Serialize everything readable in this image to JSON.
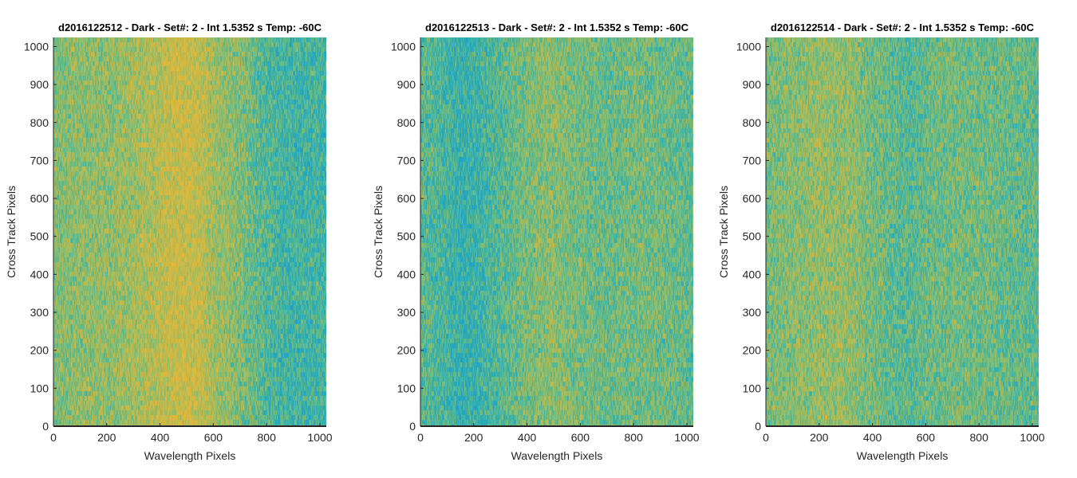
{
  "chart_data": [
    {
      "type": "heatmap",
      "title": "d2016122512 - Dark - Set#: 2 - Int 1.5352 s Temp: -60C",
      "xlabel": "Wavelength Pixels",
      "ylabel": "Cross Track Pixels",
      "xlim": [
        0,
        1024
      ],
      "ylim": [
        0,
        1024
      ],
      "xticks": [
        0,
        200,
        400,
        600,
        800,
        1000
      ],
      "yticks": [
        0,
        100,
        200,
        300,
        400,
        500,
        600,
        700,
        800,
        900,
        1000
      ],
      "grid": false,
      "colormap": [
        "#1f9fc8",
        "#2aaeb8",
        "#58b98c",
        "#8fbd6a",
        "#c3b84a",
        "#e2b83a"
      ],
      "column_profile": {
        "x": [
          0,
          100,
          200,
          300,
          400,
          450,
          500,
          550,
          600,
          700,
          800,
          900,
          1024
        ],
        "level": [
          0.55,
          0.6,
          0.6,
          0.68,
          0.78,
          0.85,
          0.88,
          0.82,
          0.68,
          0.55,
          0.35,
          0.28,
          0.3
        ]
      }
    },
    {
      "type": "heatmap",
      "title": "d2016122513 - Dark - Set#: 2 - Int 1.5352 s Temp: -60C",
      "xlabel": "Wavelength Pixels",
      "ylabel": "Cross Track Pixels",
      "xlim": [
        0,
        1024
      ],
      "ylim": [
        0,
        1024
      ],
      "xticks": [
        0,
        200,
        400,
        600,
        800,
        1000
      ],
      "yticks": [
        0,
        100,
        200,
        300,
        400,
        500,
        600,
        700,
        800,
        900,
        1000
      ],
      "grid": false,
      "colormap": [
        "#1f9fc8",
        "#2aaeb8",
        "#58b98c",
        "#8fbd6a",
        "#c3b84a",
        "#e2b83a"
      ],
      "column_profile": {
        "x": [
          0,
          100,
          150,
          200,
          300,
          400,
          500,
          600,
          700,
          800,
          900,
          1024
        ],
        "level": [
          0.42,
          0.3,
          0.22,
          0.25,
          0.38,
          0.52,
          0.58,
          0.5,
          0.45,
          0.5,
          0.48,
          0.42
        ]
      }
    },
    {
      "type": "heatmap",
      "title": "d2016122514 - Dark - Set#: 2 - Int 1.5352 s Temp: -60C",
      "xlabel": "Wavelength Pixels",
      "ylabel": "Cross Track Pixels",
      "xlim": [
        0,
        1024
      ],
      "ylim": [
        0,
        1024
      ],
      "xticks": [
        0,
        200,
        400,
        600,
        800,
        1000
      ],
      "yticks": [
        0,
        100,
        200,
        300,
        400,
        500,
        600,
        700,
        800,
        900,
        1000
      ],
      "grid": false,
      "colormap": [
        "#1f9fc8",
        "#2aaeb8",
        "#58b98c",
        "#8fbd6a",
        "#c3b84a",
        "#e2b83a"
      ],
      "column_profile": {
        "x": [
          0,
          100,
          200,
          300,
          400,
          500,
          550,
          600,
          700,
          800,
          900,
          1024
        ],
        "level": [
          0.5,
          0.58,
          0.62,
          0.62,
          0.5,
          0.4,
          0.38,
          0.45,
          0.5,
          0.48,
          0.45,
          0.42
        ]
      }
    }
  ]
}
